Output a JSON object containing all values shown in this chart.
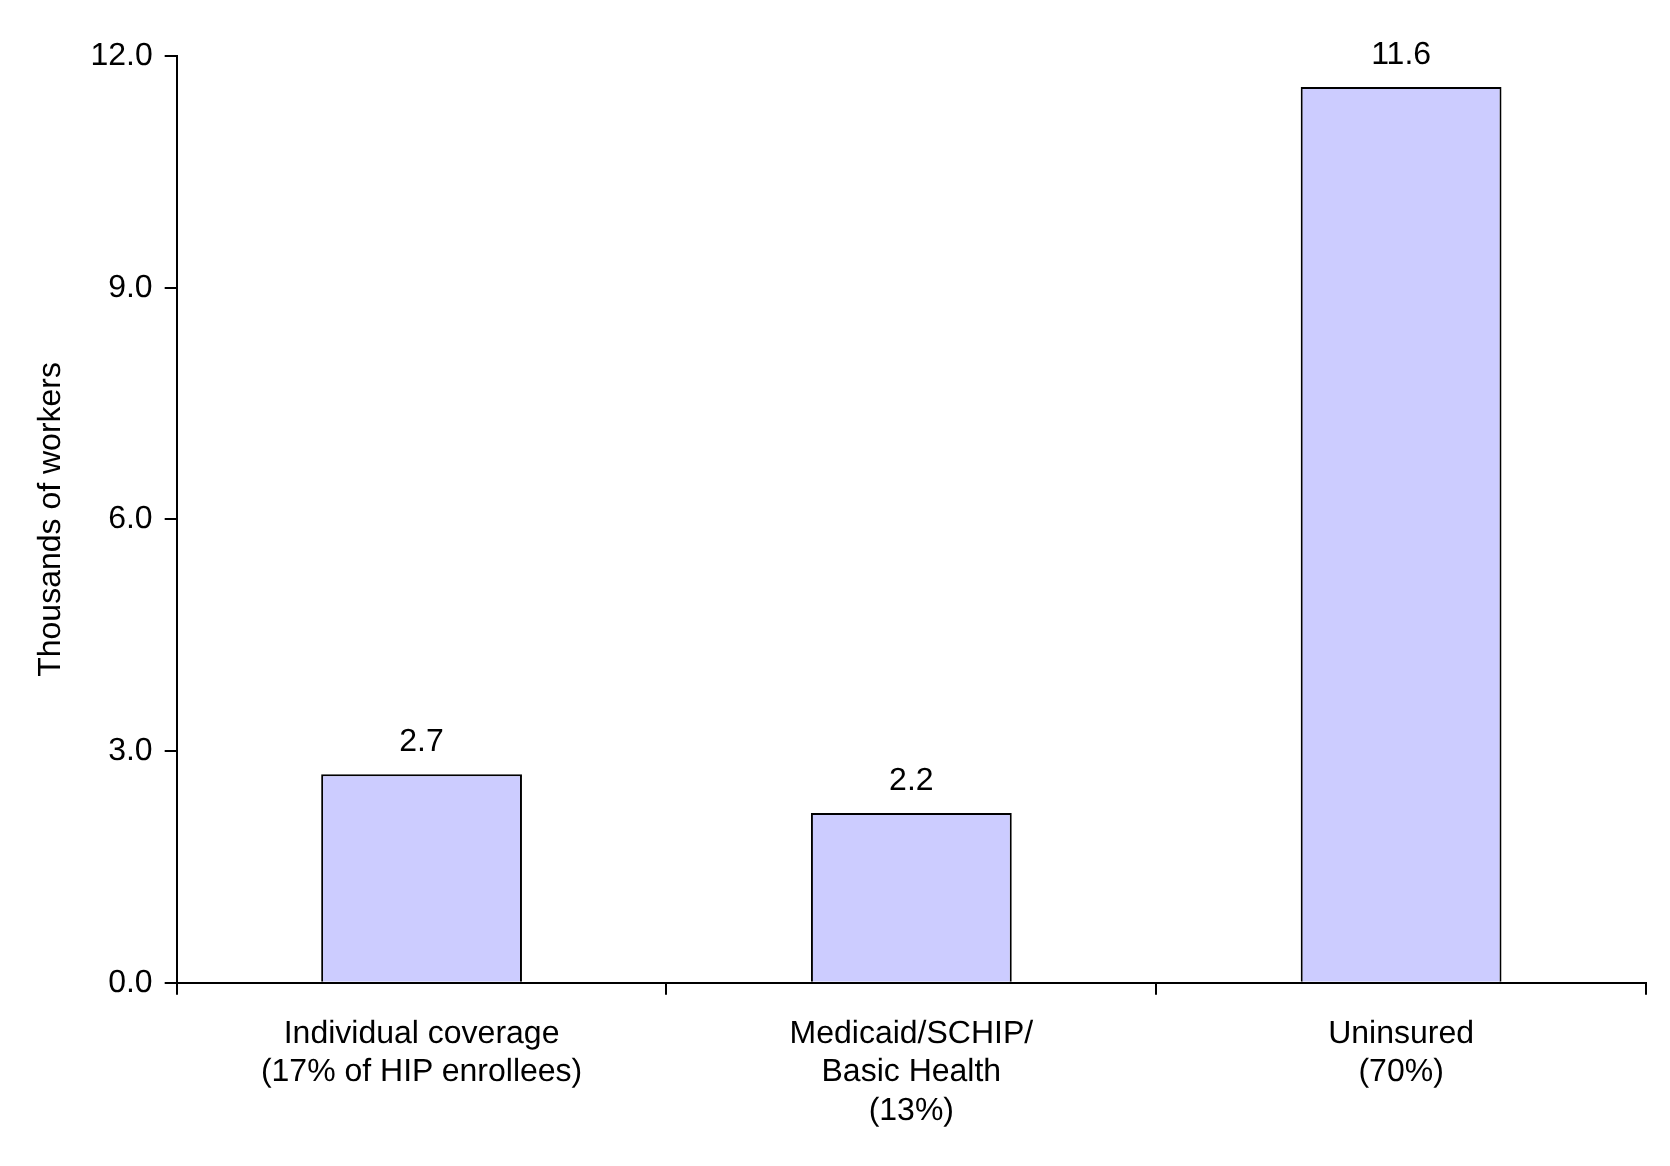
{
  "chart_data": {
    "type": "bar",
    "ylabel": "Thousands of workers",
    "categories": [
      "Individual coverage\n(17% of HIP enrollees)",
      "Medicaid/SCHIP/\nBasic Health\n(13%)",
      "Uninsured\n(70%)"
    ],
    "values": [
      2.7,
      2.2,
      11.6
    ],
    "color": "#ccccff",
    "ylim": [
      0,
      12
    ],
    "yticks": [
      {
        "value": 0,
        "label": "0.0"
      },
      {
        "value": 3,
        "label": "3.0"
      },
      {
        "value": 6,
        "label": "6.0"
      },
      {
        "value": 9,
        "label": "9.0"
      },
      {
        "value": 12,
        "label": "12.0"
      }
    ],
    "data_labels": true,
    "grid": false,
    "legend": false
  }
}
